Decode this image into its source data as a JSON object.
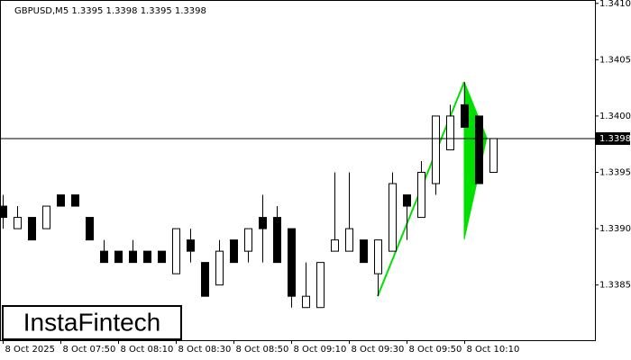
{
  "chart_data": {
    "type": "candlestick",
    "title": "GBPUSD,M5  1.3395 1.3398 1.3395 1.3398",
    "logo": "InstaFintech",
    "categories": [
      "8 Oct 2025",
      null,
      null,
      null,
      "8 Oct 07:50",
      null,
      null,
      null,
      "8 Oct 08:10",
      null,
      null,
      null,
      "8 Oct 08:30",
      null,
      null,
      null,
      "8 Oct 08:50",
      null,
      null,
      null,
      "8 Oct 09:10",
      null,
      null,
      null,
      "8 Oct 09:30",
      null,
      null,
      null,
      "8 Oct 09:50",
      null,
      null,
      null,
      "8 Oct 10:10",
      null,
      null
    ],
    "open": [
      1.3392,
      1.339,
      1.3391,
      1.339,
      1.3393,
      1.3393,
      1.3391,
      1.3388,
      1.3388,
      1.3388,
      1.3388,
      1.3388,
      1.3386,
      1.3389,
      1.3387,
      1.3385,
      1.3389,
      1.3388,
      1.3391,
      1.3391,
      1.339,
      1.3383,
      1.3383,
      1.3388,
      1.3388,
      1.3389,
      1.3386,
      1.3388,
      1.3393,
      1.3391,
      1.3394,
      1.3397,
      1.3401,
      1.34,
      1.3395
    ],
    "high": [
      1.3393,
      1.3392,
      1.3391,
      1.3392,
      1.3393,
      1.3393,
      1.3391,
      1.3389,
      1.3388,
      1.3389,
      1.3388,
      1.3388,
      1.339,
      1.339,
      1.3387,
      1.3389,
      1.3389,
      1.339,
      1.3393,
      1.3392,
      1.339,
      1.3387,
      1.3387,
      1.3395,
      1.3395,
      1.3389,
      1.3389,
      1.3395,
      1.3393,
      1.3396,
      1.34,
      1.3401,
      1.3403,
      1.34,
      1.3398
    ],
    "low": [
      1.339,
      1.339,
      1.3389,
      1.339,
      1.3392,
      1.3392,
      1.3389,
      1.3387,
      1.3387,
      1.3387,
      1.3387,
      1.3387,
      1.3386,
      1.3387,
      1.3384,
      1.3385,
      1.3387,
      1.3387,
      1.3387,
      1.3387,
      1.3383,
      1.3383,
      1.3383,
      1.3388,
      1.3388,
      1.3387,
      1.3384,
      1.3388,
      1.3389,
      1.3391,
      1.3393,
      1.3397,
      1.3399,
      1.3394,
      1.3395
    ],
    "close": [
      1.3391,
      1.3391,
      1.3389,
      1.3392,
      1.3392,
      1.3392,
      1.3389,
      1.3387,
      1.3387,
      1.3387,
      1.3387,
      1.3387,
      1.339,
      1.3388,
      1.3384,
      1.3388,
      1.3387,
      1.339,
      1.339,
      1.3387,
      1.3384,
      1.3384,
      1.3387,
      1.3389,
      1.339,
      1.3387,
      1.3389,
      1.3394,
      1.3392,
      1.3395,
      1.34,
      1.34,
      1.3399,
      1.3394,
      1.3398
    ],
    "up_color": "#ffffff",
    "down_color": "#000000",
    "last_price": 1.3398,
    "ylim": [
      1.33801,
      1.34103
    ],
    "yticks": [
      1.3385,
      {
        "value": 1.339,
        "label": "1.3390"
      },
      1.3395,
      {
        "value": 1.34,
        "label": "1.3400"
      },
      1.3405,
      {
        "value": 1.341,
        "label": "1.3410"
      }
    ]
  }
}
